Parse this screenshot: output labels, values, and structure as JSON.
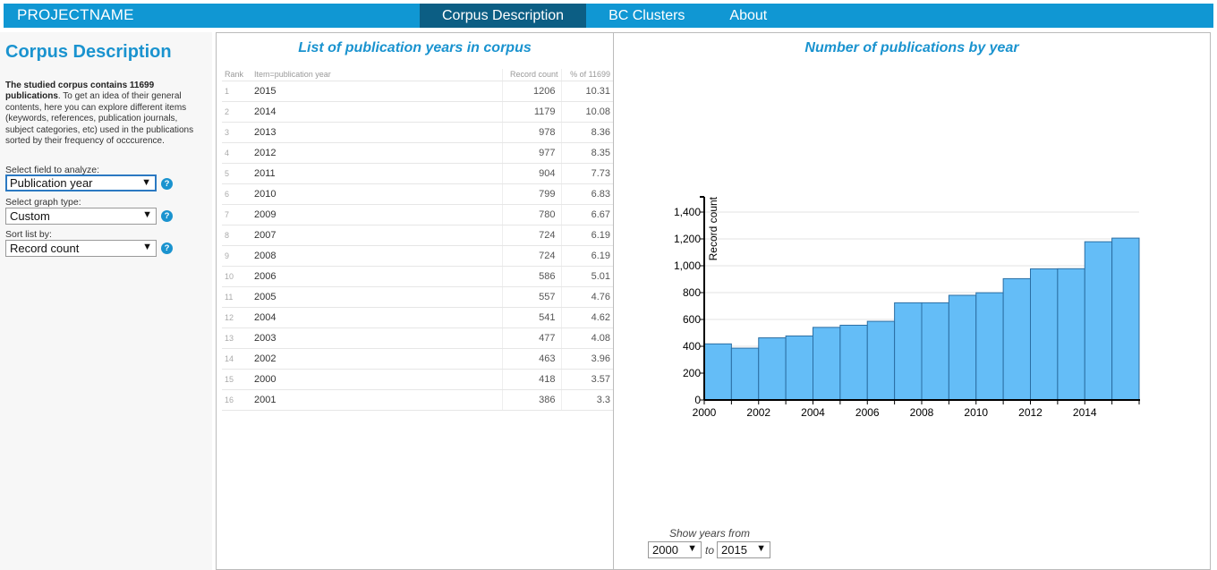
{
  "brand": "PROJECTNAME",
  "nav": [
    {
      "label": "Corpus Description",
      "active": true
    },
    {
      "label": "BC Clusters",
      "active": false
    },
    {
      "label": "About",
      "active": false
    }
  ],
  "sidebar": {
    "title": "Corpus Description",
    "desc_bold": "The studied corpus contains 11699 publications",
    "desc_rest": ". To get an idea of their general contents, here you can explore different items (keywords, references, publication journals, subject categories, etc) used in the publications sorted by their frequency of occcurence.",
    "field_label": "Select field to analyze:",
    "field_value": "Publication year",
    "graph_label": "Select graph type:",
    "graph_value": "Custom",
    "sort_label": "Sort list by:",
    "sort_value": "Record count",
    "help_glyph": "?"
  },
  "table": {
    "title": "List of publication years in corpus",
    "headers": [
      "Rank",
      "Item=publication year",
      "Record count",
      "% of 11699"
    ],
    "rows": [
      [
        "1",
        "2015",
        "1206",
        "10.31"
      ],
      [
        "2",
        "2014",
        "1179",
        "10.08"
      ],
      [
        "3",
        "2013",
        "978",
        "8.36"
      ],
      [
        "4",
        "2012",
        "977",
        "8.35"
      ],
      [
        "5",
        "2011",
        "904",
        "7.73"
      ],
      [
        "6",
        "2010",
        "799",
        "6.83"
      ],
      [
        "7",
        "2009",
        "780",
        "6.67"
      ],
      [
        "8",
        "2007",
        "724",
        "6.19"
      ],
      [
        "9",
        "2008",
        "724",
        "6.19"
      ],
      [
        "10",
        "2006",
        "586",
        "5.01"
      ],
      [
        "11",
        "2005",
        "557",
        "4.76"
      ],
      [
        "12",
        "2004",
        "541",
        "4.62"
      ],
      [
        "13",
        "2003",
        "477",
        "4.08"
      ],
      [
        "14",
        "2002",
        "463",
        "3.96"
      ],
      [
        "15",
        "2000",
        "418",
        "3.57"
      ],
      [
        "16",
        "2001",
        "386",
        "3.3"
      ]
    ]
  },
  "chart_panel": {
    "title": "Number of publications by year",
    "range_label": "Show years from",
    "range_from": "2000",
    "range_to_word": "to",
    "range_to": "2015"
  },
  "chart_data": {
    "type": "bar",
    "title": "Number of publications by year",
    "xlabel": "",
    "ylabel": "Record count",
    "categories": [
      "2000",
      "2001",
      "2002",
      "2003",
      "2004",
      "2005",
      "2006",
      "2007",
      "2008",
      "2009",
      "2010",
      "2011",
      "2012",
      "2013",
      "2014",
      "2015"
    ],
    "values": [
      418,
      386,
      463,
      477,
      541,
      557,
      586,
      724,
      724,
      780,
      799,
      904,
      977,
      978,
      1179,
      1206
    ],
    "ylim": [
      0,
      1400
    ],
    "yticks": [
      0,
      200,
      400,
      600,
      800,
      1000,
      1200,
      1400
    ],
    "ytick_labels": [
      "0",
      "200",
      "400",
      "600",
      "800",
      "1,000",
      "1,200",
      "1,400"
    ],
    "xtick_labels": [
      "2000",
      "2002",
      "2004",
      "2006",
      "2008",
      "2010",
      "2012",
      "2014"
    ],
    "grid": true,
    "bar_color": "#64bdf7",
    "bar_stroke": "#2b6ea3"
  }
}
